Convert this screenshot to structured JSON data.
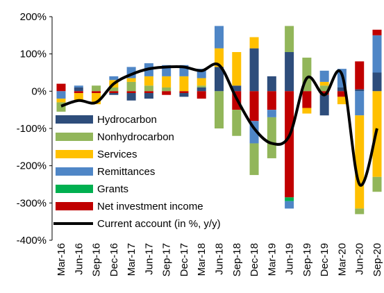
{
  "chart_data": {
    "type": "bar",
    "categories": [
      "Mar-16",
      "Jun-16",
      "Sep-16",
      "Dec-16",
      "Mar-17",
      "Jun-17",
      "Sep-17",
      "Dec-17",
      "Mar-18",
      "Jun-18",
      "Sep-18",
      "Dec-18",
      "Mar-19",
      "Jun-19",
      "Sep-19",
      "Dec-19",
      "Mar-20",
      "Jun-20",
      "Sep-20"
    ],
    "series": [
      {
        "name": "Hydrocarbon",
        "color": "#2e4d7b",
        "values": [
          0,
          10,
          0,
          -5,
          -20,
          -15,
          0,
          -10,
          10,
          65,
          15,
          115,
          40,
          105,
          0,
          -55,
          10,
          5,
          50
        ]
      },
      {
        "name": "Nonhydrocarbon",
        "color": "#92b65a",
        "values": [
          -25,
          0,
          15,
          10,
          25,
          15,
          10,
          0,
          5,
          -100,
          -70,
          -85,
          -110,
          70,
          90,
          15,
          0,
          -15,
          -40
        ]
      },
      {
        "name": "Services",
        "color": "#ffc000",
        "values": [
          -10,
          -20,
          -30,
          20,
          10,
          25,
          30,
          40,
          20,
          50,
          90,
          30,
          0,
          0,
          -15,
          10,
          -20,
          -250,
          -230
        ]
      },
      {
        "name": "Remittances",
        "color": "#4f86c6",
        "values": [
          -20,
          5,
          0,
          10,
          30,
          35,
          30,
          30,
          25,
          60,
          0,
          -60,
          -20,
          -20,
          0,
          30,
          50,
          -65,
          100
        ]
      },
      {
        "name": "Grants",
        "color": "#00b050",
        "values": [
          0,
          0,
          0,
          0,
          0,
          0,
          0,
          0,
          0,
          0,
          0,
          0,
          0,
          -10,
          0,
          0,
          0,
          0,
          0
        ]
      },
      {
        "name": "Net investment income",
        "color": "#c00000",
        "values": [
          20,
          -5,
          -5,
          -5,
          -5,
          -5,
          -10,
          -5,
          -20,
          0,
          -50,
          -80,
          -50,
          -285,
          -45,
          -10,
          -15,
          75,
          15
        ]
      },
      {
        "name": "Current account (in %, y/y)",
        "color": "#000000",
        "type": "line",
        "values": [
          -40,
          -25,
          -30,
          20,
          45,
          60,
          65,
          65,
          55,
          70,
          -20,
          -100,
          -140,
          -120,
          35,
          -10,
          45,
          -250,
          -100
        ]
      }
    ],
    "ylim": [
      -400,
      200
    ],
    "yticks": [
      {
        "value": -400,
        "label": "-400%"
      },
      {
        "value": -300,
        "label": "-300%"
      },
      {
        "value": -200,
        "label": "-200%"
      },
      {
        "value": -100,
        "label": "-100%"
      },
      {
        "value": 0,
        "label": "0%"
      },
      {
        "value": 100,
        "label": "100%"
      },
      {
        "value": 200,
        "label": "200%"
      }
    ],
    "legend": "left"
  }
}
